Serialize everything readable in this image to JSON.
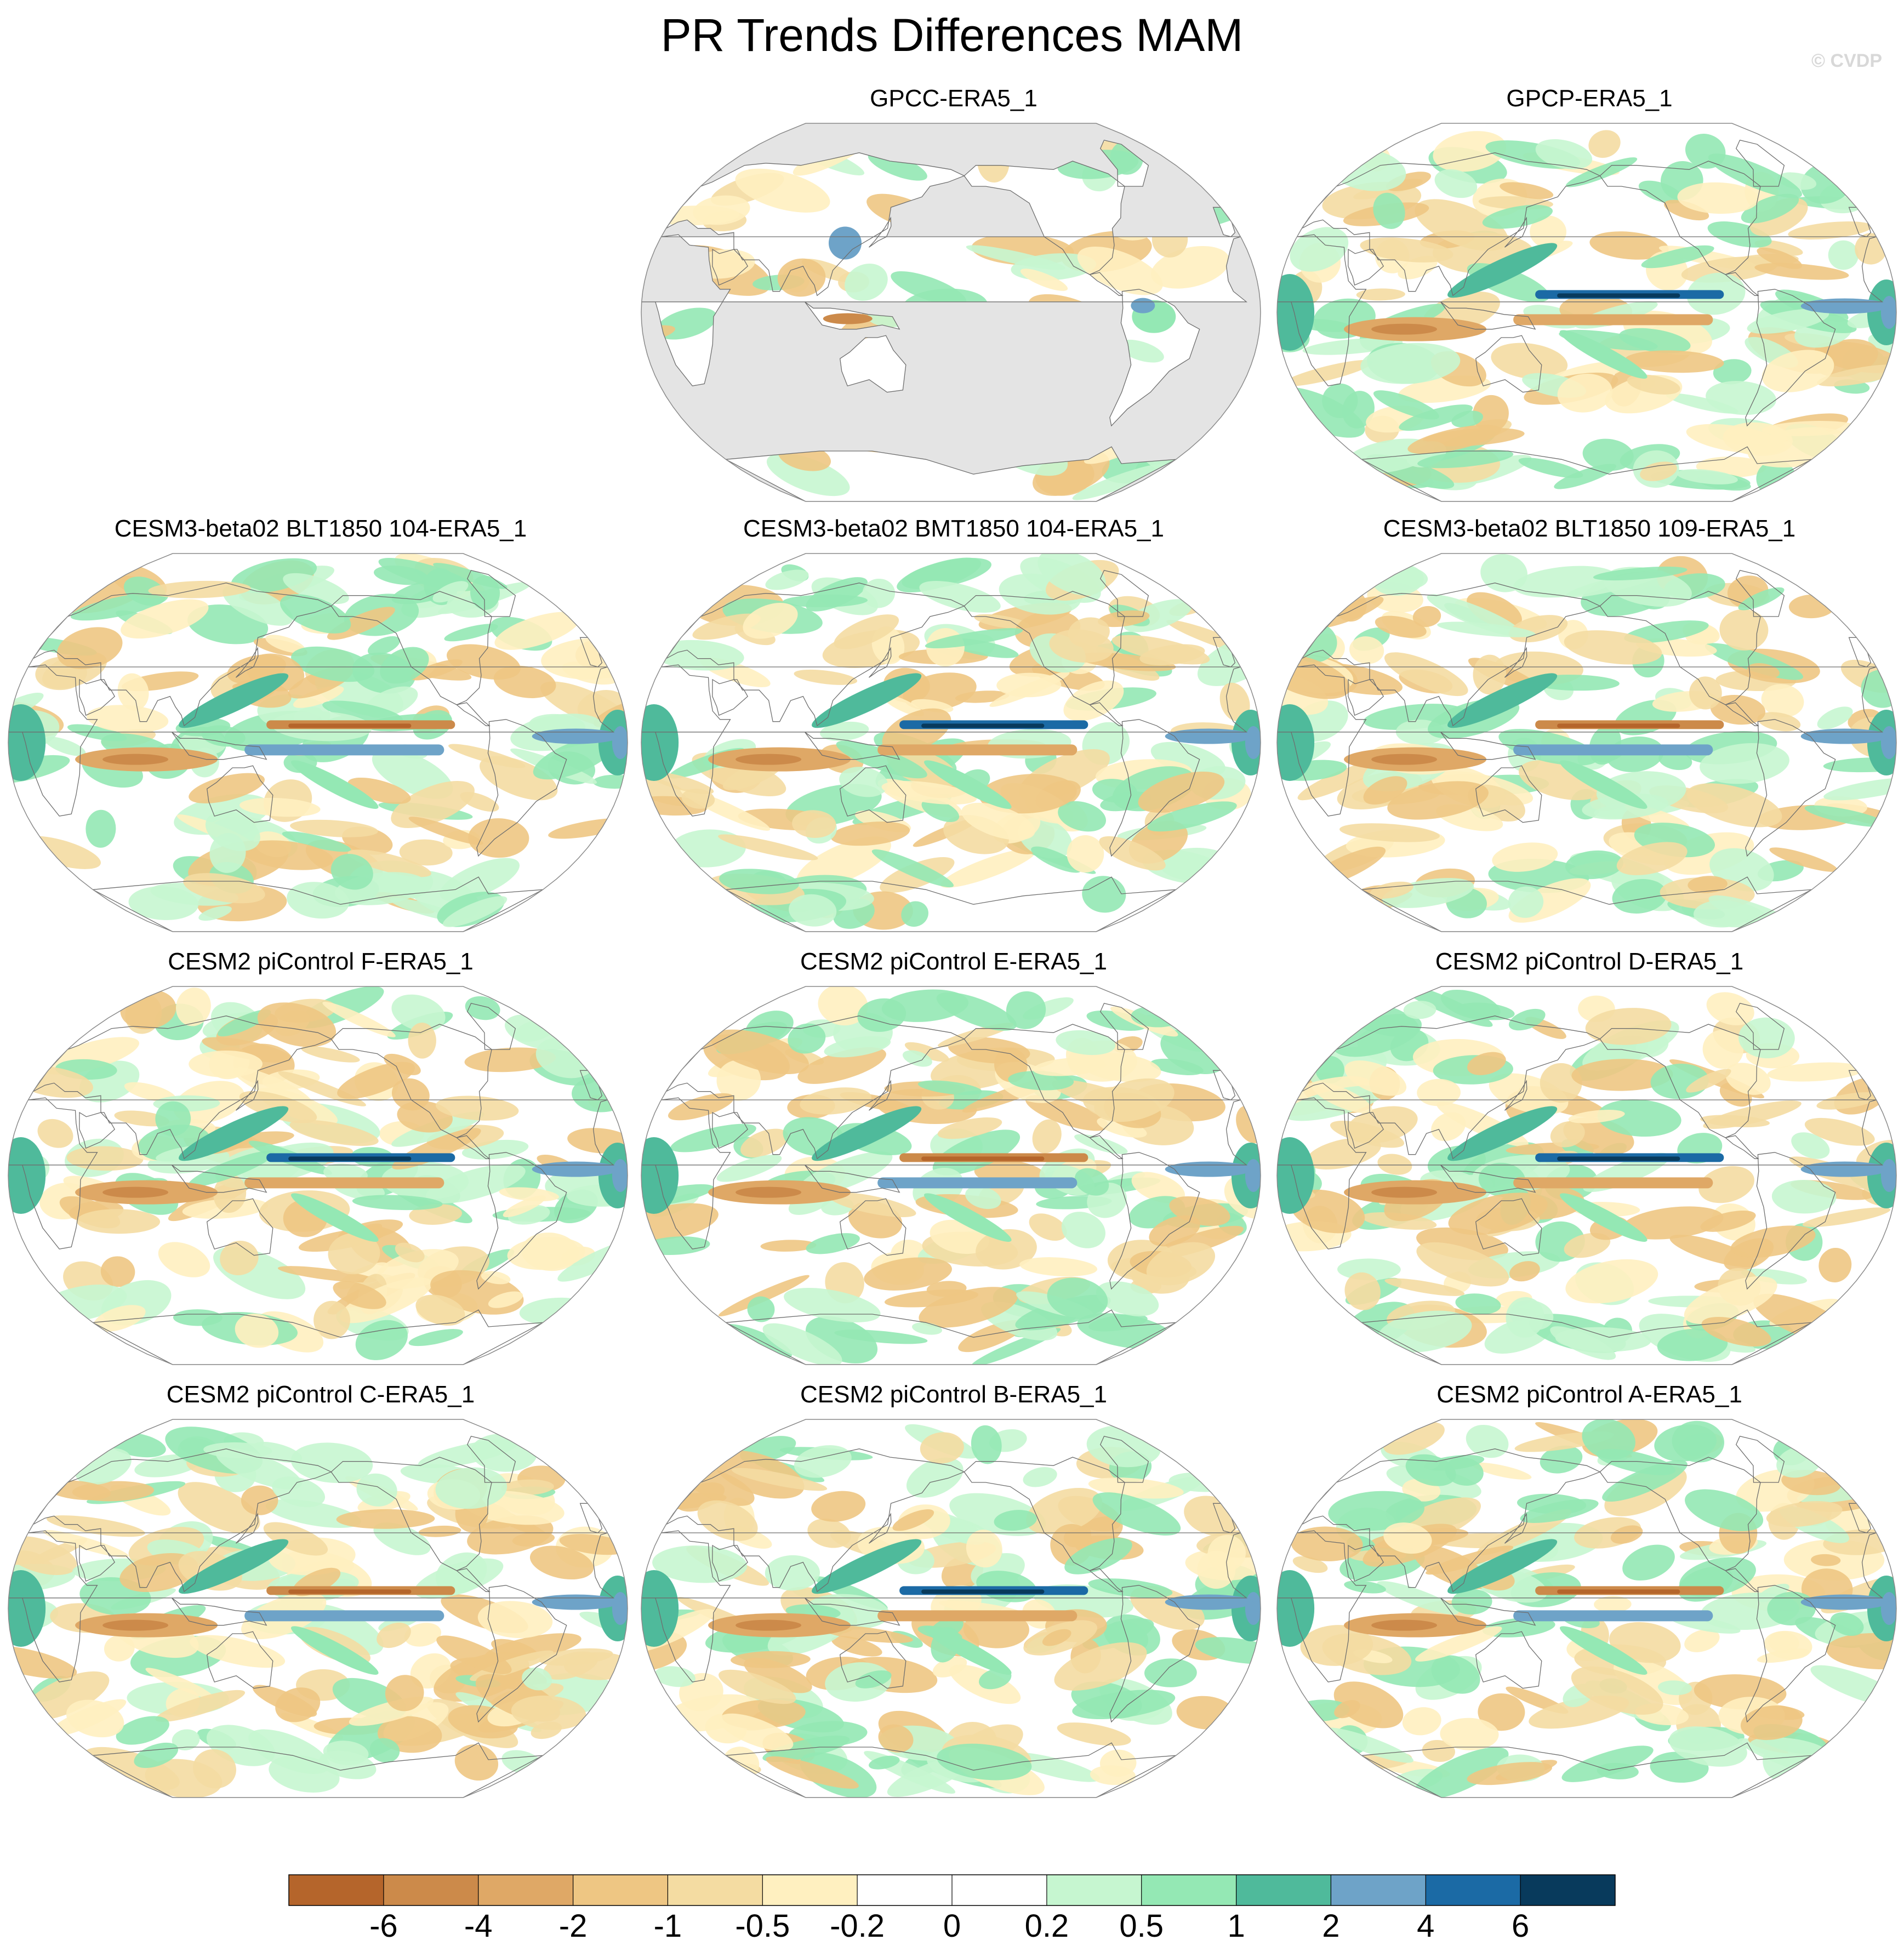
{
  "title": "PR Trends Differences MAM",
  "watermark": "© CVDP",
  "panels": [
    {
      "title": "GPCC-ERA5_1",
      "kind": "obs_land"
    },
    {
      "title": "GPCP-ERA5_1",
      "kind": "obs"
    },
    {
      "title": "CESM3-beta02 BLT1850 104-ERA5_1",
      "kind": "model"
    },
    {
      "title": "CESM3-beta02 BMT1850 104-ERA5_1",
      "kind": "model"
    },
    {
      "title": "CESM3-beta02 BLT1850 109-ERA5_1",
      "kind": "model"
    },
    {
      "title": "CESM2 piControl F-ERA5_1",
      "kind": "model"
    },
    {
      "title": "CESM2 piControl E-ERA5_1",
      "kind": "model"
    },
    {
      "title": "CESM2 piControl D-ERA5_1",
      "kind": "model"
    },
    {
      "title": "CESM2 piControl C-ERA5_1",
      "kind": "model"
    },
    {
      "title": "CESM2 piControl B-ERA5_1",
      "kind": "model"
    },
    {
      "title": "CESM2 piControl A-ERA5_1",
      "kind": "model"
    }
  ],
  "chart_data": {
    "type": "heatmap",
    "title": "PR Trends Differences MAM",
    "projection": "Robinson (Pacific-centered)",
    "colorbar": {
      "levels": [
        "-6",
        "-4",
        "-2",
        "-1",
        "-0.5",
        "-0.2",
        "0",
        "0.2",
        "0.5",
        "1",
        "2",
        "4",
        "6"
      ],
      "colors": [
        "#b5652b",
        "#cc8a4a",
        "#dfa866",
        "#eec683",
        "#f4dca2",
        "#fff0c0",
        "#ffffff",
        "#ffffff",
        "#c6f6d0",
        "#94e8b4",
        "#4fba9b",
        "#6ea3c8",
        "#1b6aa5",
        "#083a5c"
      ]
    }
  }
}
